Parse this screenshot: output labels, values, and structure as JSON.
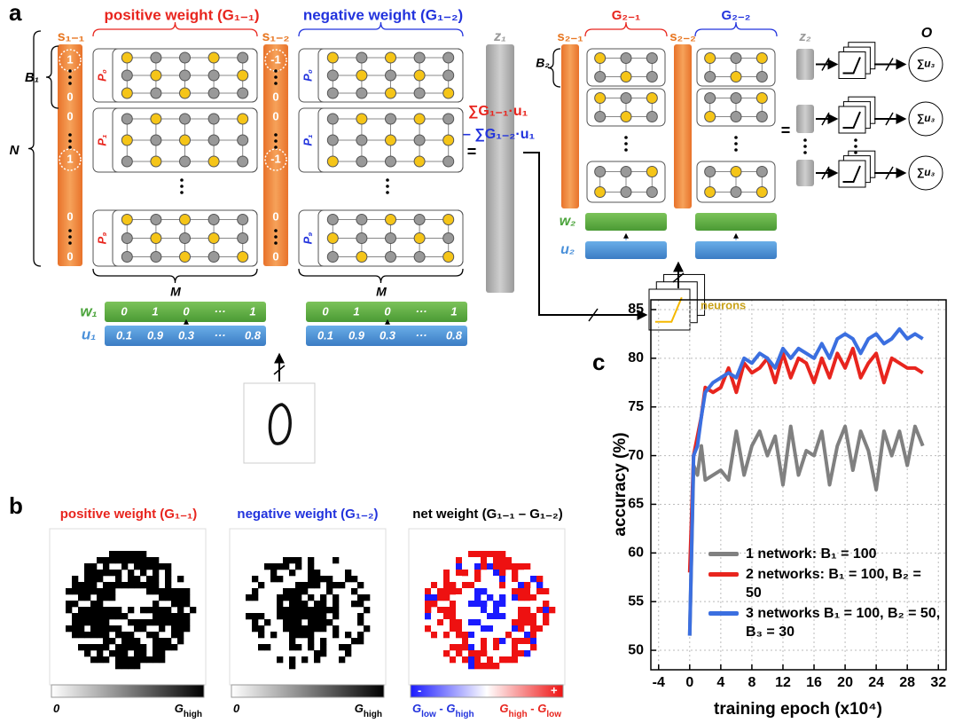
{
  "panel_labels": [
    "a",
    "b",
    "c"
  ],
  "panel_a": {
    "top_labels": [
      "positive weight (G₁₋₁)",
      "negative weight (G₁₋₂)"
    ],
    "s_labels": [
      "s₁₋₁",
      "s₁₋₂"
    ],
    "z1": "z₁",
    "B1": "B₁",
    "N": "N",
    "M": "M",
    "s_column_1": [
      "1",
      "0",
      "0",
      "1",
      "0",
      "0"
    ],
    "s_column_2": [
      "-1",
      "0",
      "0",
      "-1",
      "0",
      "0"
    ],
    "p_labels": [
      "P₀",
      "P₁",
      "P₉"
    ],
    "w_label": "w₁",
    "u_label": "u₁",
    "w_values": [
      "0",
      "1",
      "0",
      "···",
      "1"
    ],
    "u_values": [
      "0.1",
      "0.9",
      "0.3",
      "···",
      "0.8"
    ],
    "sum_pos": "∑G₁₋₁·u₁",
    "sum_neg": "– ∑G₁₋₂·u₁",
    "equals": "=",
    "layer2": {
      "g_labels": [
        "G₂₋₁",
        "G₂₋₂"
      ],
      "s_labels": [
        "s₂₋₁",
        "s₂₋₂"
      ],
      "z2": "z₂",
      "B2": "B₂",
      "w2": "w₂",
      "u2": "u₂",
      "output": "O",
      "sum_u3": "∑u₃",
      "neurons": "neurons"
    }
  },
  "panel_b": {
    "titles": [
      "positive weight (G₁₋₁)",
      "negative weight (G₁₋₂)",
      "net weight (G₁₋₁ – G₁₋₂)"
    ],
    "colorbars": [
      {
        "low": [
          "0"
        ],
        "high": [
          "G",
          "high"
        ]
      },
      {
        "low": [
          "0"
        ],
        "high": [
          "G",
          "high"
        ]
      },
      {
        "low": [
          "G",
          "low",
          " - ",
          "G",
          "high"
        ],
        "high": [
          "G",
          "high",
          " - ",
          "G",
          "low"
        ],
        "minus": "-",
        "plus": "+"
      }
    ]
  },
  "chart_data": {
    "type": "line",
    "xlabel": "training epoch (x10⁴)",
    "ylabel": "accuracy (%)",
    "x": [
      0,
      0.5,
      1,
      1.5,
      2,
      3,
      4,
      5,
      6,
      7,
      8,
      9,
      10,
      11,
      12,
      13,
      14,
      15,
      16,
      17,
      18,
      19,
      20,
      21,
      22,
      23,
      24,
      25,
      26,
      27,
      28,
      29,
      30
    ],
    "series": [
      {
        "name": "1 network: B₁ = 100",
        "color": "#808080",
        "values": [
          51.5,
          69,
          68,
          71,
          67.5,
          68,
          68.5,
          67.5,
          72.5,
          68,
          71,
          72.5,
          70,
          72,
          67,
          73,
          68,
          70.5,
          70,
          72.5,
          67,
          71,
          73,
          68.5,
          72.5,
          70.5,
          66.5,
          72.5,
          70,
          72.5,
          69,
          73,
          71
        ]
      },
      {
        "name": "2 networks: B₁ = 100, B₂ = 50",
        "color": "#e8251e",
        "values": [
          58,
          70,
          72,
          74,
          77,
          76.5,
          77,
          79,
          76.5,
          79.5,
          78.5,
          79,
          80,
          77.5,
          80.5,
          78,
          80,
          79.5,
          77.5,
          80,
          78,
          80.5,
          79,
          81,
          78,
          79.5,
          80.5,
          77.5,
          80,
          79.5,
          79,
          79,
          78.5
        ]
      },
      {
        "name": "3 networks B₁ = 100, B₂ = 50, B₃ = 30",
        "color": "#3b6fe0",
        "values": [
          51.5,
          70,
          71,
          74,
          76.5,
          77.5,
          78,
          78.5,
          78,
          80,
          79.5,
          80.5,
          80,
          79,
          81,
          80,
          81,
          80.5,
          80,
          81.5,
          80,
          82,
          82.5,
          82,
          80.5,
          82,
          82.5,
          81.5,
          82,
          83,
          82,
          82.5,
          82
        ]
      }
    ],
    "xlim": [
      -5,
      33
    ],
    "xticks": [
      -4,
      0,
      4,
      8,
      12,
      16,
      20,
      24,
      28,
      32
    ],
    "ylim": [
      48,
      86
    ],
    "yticks": [
      50,
      55,
      60,
      65,
      70,
      75,
      80,
      85
    ],
    "grid": true,
    "legend": "lower right"
  }
}
